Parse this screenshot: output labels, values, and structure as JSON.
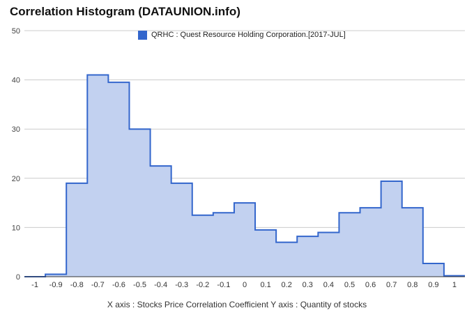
{
  "title": "Correlation Histogram (DATAUNION.info)",
  "legend": {
    "label": "QRHC : Quest Resource Holding Corporation.[2017-JUL]",
    "color": "#3366cc"
  },
  "axis_caption": "X axis : Stocks Price Correlation Coefficient  Y axis : Quantity of stocks",
  "chart_data": {
    "type": "area",
    "step": true,
    "x": [
      -1.0,
      -0.9,
      -0.8,
      -0.7,
      -0.6,
      -0.5,
      -0.4,
      -0.3,
      -0.2,
      -0.1,
      0.0,
      0.1,
      0.2,
      0.3,
      0.4,
      0.5,
      0.6,
      0.7,
      0.8,
      0.9,
      1.0
    ],
    "series": [
      {
        "name": "QRHC : Quest Resource Holding Corporation.[2017-JUL]",
        "values": [
          0,
          0.5,
          19,
          41,
          39.5,
          30,
          22.5,
          19,
          12.5,
          13,
          15,
          9.5,
          7,
          8.2,
          9,
          13,
          14,
          19.4,
          14,
          2.7,
          0.2
        ],
        "color": "#3366cc",
        "fill": "#c2d1f0"
      }
    ],
    "ylim": [
      0,
      50
    ],
    "yticks": [
      0,
      10,
      20,
      30,
      40,
      50
    ],
    "xticks": [
      "-1",
      "-0.9",
      "-0.8",
      "-0.7",
      "-0.6",
      "-0.5",
      "-0.4",
      "-0.3",
      "-0.2",
      "-0.1",
      "0",
      "0.1",
      "0.2",
      "0.3",
      "0.4",
      "0.5",
      "0.6",
      "0.7",
      "0.8",
      "0.9",
      "1"
    ],
    "grid": true,
    "legend_position": "top"
  }
}
